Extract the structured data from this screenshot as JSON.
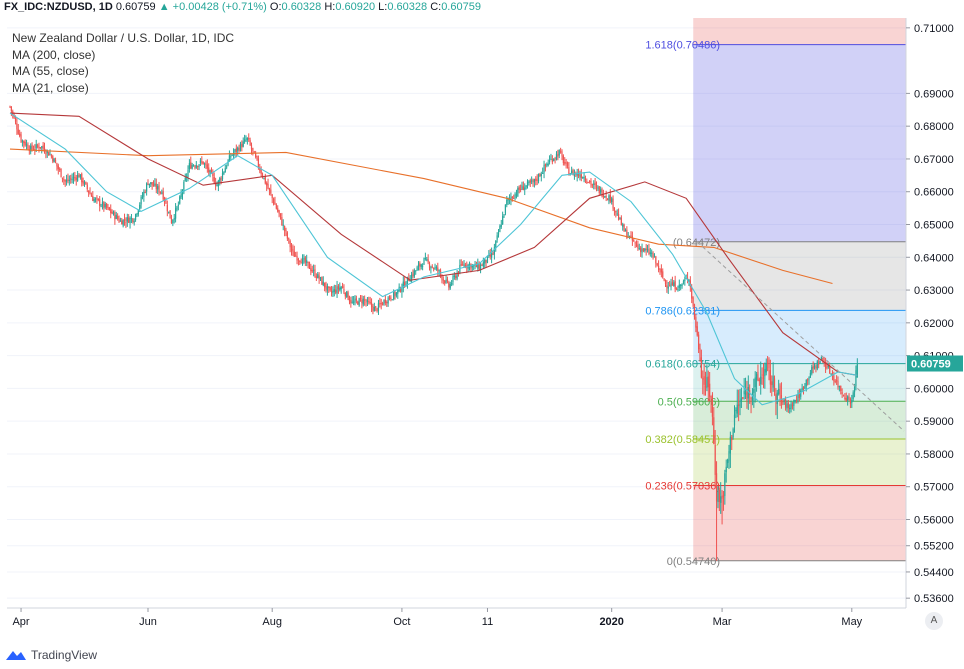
{
  "header": {
    "symbol": "FX_IDC:NZDUSD, 1D",
    "last": "0.60759",
    "arrow": "▲",
    "change": "+0.00428 (+0.71%)",
    "o_label": "O:",
    "o": "0.60328",
    "h_label": "H:",
    "h": "0.60920",
    "l_label": "L:",
    "l": "0.60328",
    "c_label": "C:",
    "c": "0.60759"
  },
  "legend": {
    "title": "New Zealand Dollar / U.S. Dollar, 1D, IDC",
    "ma200": "MA (200, close)",
    "ma55": "MA (55, close)",
    "ma21": "MA (21, close)"
  },
  "footer": {
    "brand": "TradingView",
    "auto_button": "A"
  },
  "colors": {
    "up": "#26a69a",
    "down": "#ef5350",
    "ma200": "#e8702a",
    "ma55": "#b5383a",
    "ma21": "#4ec5d6",
    "fib_1618": "#4e4ee0",
    "fib_1": "#808080",
    "fib_0786": "#2196f3",
    "fib_0618": "#26a69a",
    "fib_05": "#4caf50",
    "fib_0382": "#9bc22d",
    "fib_0236": "#e53935",
    "fib_0": "#808080"
  },
  "chart_data": {
    "type": "candlestick",
    "symbol": "NZDUSD",
    "timeframe": "1D",
    "x_ticks": [
      "Apr",
      "Jun",
      "Aug",
      "Oct",
      "11",
      "2020",
      "Mar",
      "May"
    ],
    "y_ticks": [
      "0.71000",
      "0.69000",
      "0.68000",
      "0.67000",
      "0.66000",
      "0.65000",
      "0.64000",
      "0.63000",
      "0.62000",
      "0.61000",
      "0.60000",
      "0.59000",
      "0.58000",
      "0.57000",
      "0.56000",
      "0.55200",
      "0.54400",
      "0.53600"
    ],
    "current_price_label": "0.60759",
    "ylim": [
      0.533,
      0.713
    ],
    "price_path": [
      [
        0,
        0.686
      ],
      [
        8,
        0.676
      ],
      [
        15,
        0.673
      ],
      [
        22,
        0.674
      ],
      [
        30,
        0.671
      ],
      [
        40,
        0.663
      ],
      [
        50,
        0.665
      ],
      [
        60,
        0.658
      ],
      [
        70,
        0.655
      ],
      [
        80,
        0.651
      ],
      [
        90,
        0.652
      ],
      [
        100,
        0.663
      ],
      [
        110,
        0.66
      ],
      [
        117,
        0.651
      ],
      [
        122,
        0.656
      ],
      [
        130,
        0.668
      ],
      [
        140,
        0.669
      ],
      [
        150,
        0.662
      ],
      [
        160,
        0.671
      ],
      [
        172,
        0.676
      ],
      [
        180,
        0.668
      ],
      [
        188,
        0.66
      ],
      [
        195,
        0.653
      ],
      [
        205,
        0.641
      ],
      [
        215,
        0.638
      ],
      [
        225,
        0.633
      ],
      [
        232,
        0.629
      ],
      [
        240,
        0.631
      ],
      [
        248,
        0.626
      ],
      [
        256,
        0.627
      ],
      [
        265,
        0.624
      ],
      [
        272,
        0.627
      ],
      [
        280,
        0.629
      ],
      [
        290,
        0.634
      ],
      [
        300,
        0.639
      ],
      [
        310,
        0.636
      ],
      [
        318,
        0.631
      ],
      [
        328,
        0.638
      ],
      [
        340,
        0.637
      ],
      [
        350,
        0.641
      ],
      [
        360,
        0.657
      ],
      [
        370,
        0.661
      ],
      [
        380,
        0.663
      ],
      [
        390,
        0.669
      ],
      [
        398,
        0.672
      ],
      [
        405,
        0.666
      ],
      [
        415,
        0.665
      ],
      [
        425,
        0.661
      ],
      [
        435,
        0.658
      ],
      [
        445,
        0.648
      ],
      [
        455,
        0.643
      ],
      [
        465,
        0.641
      ],
      [
        475,
        0.632
      ],
      [
        485,
        0.631
      ],
      [
        492,
        0.634
      ],
      [
        497,
        0.619
      ],
      [
        502,
        0.603
      ],
      [
        508,
        0.598
      ],
      [
        512,
        0.568
      ],
      [
        516,
        0.566
      ],
      [
        520,
        0.578
      ],
      [
        525,
        0.592
      ],
      [
        532,
        0.598
      ],
      [
        540,
        0.601
      ],
      [
        548,
        0.606
      ],
      [
        556,
        0.598
      ],
      [
        564,
        0.594
      ],
      [
        572,
        0.598
      ],
      [
        580,
        0.605
      ],
      [
        588,
        0.609
      ],
      [
        596,
        0.604
      ],
      [
        604,
        0.598
      ],
      [
        610,
        0.596
      ],
      [
        614,
        0.6076
      ]
    ],
    "moving_averages": [
      {
        "name": "MA (200, close)",
        "points": [
          [
            0,
            0.673
          ],
          [
            100,
            0.671
          ],
          [
            200,
            0.672
          ],
          [
            300,
            0.664
          ],
          [
            360,
            0.658
          ],
          [
            420,
            0.649
          ],
          [
            470,
            0.644
          ],
          [
            510,
            0.643
          ],
          [
            560,
            0.636
          ],
          [
            596,
            0.632
          ]
        ]
      },
      {
        "name": "MA (55, close)",
        "points": [
          [
            0,
            0.684
          ],
          [
            50,
            0.683
          ],
          [
            100,
            0.67
          ],
          [
            140,
            0.662
          ],
          [
            190,
            0.665
          ],
          [
            240,
            0.647
          ],
          [
            290,
            0.633
          ],
          [
            340,
            0.636
          ],
          [
            380,
            0.643
          ],
          [
            420,
            0.658
          ],
          [
            460,
            0.663
          ],
          [
            490,
            0.658
          ],
          [
            520,
            0.64
          ],
          [
            560,
            0.617
          ],
          [
            600,
            0.605
          ],
          [
            614,
            0.604
          ]
        ]
      },
      {
        "name": "MA (21, close)",
        "points": [
          [
            0,
            0.684
          ],
          [
            40,
            0.673
          ],
          [
            70,
            0.66
          ],
          [
            95,
            0.654
          ],
          [
            130,
            0.661
          ],
          [
            165,
            0.671
          ],
          [
            190,
            0.665
          ],
          [
            230,
            0.64
          ],
          [
            270,
            0.628
          ],
          [
            300,
            0.634
          ],
          [
            340,
            0.638
          ],
          [
            370,
            0.65
          ],
          [
            400,
            0.665
          ],
          [
            420,
            0.666
          ],
          [
            450,
            0.657
          ],
          [
            480,
            0.641
          ],
          [
            505,
            0.623
          ],
          [
            525,
            0.603
          ],
          [
            545,
            0.595
          ],
          [
            570,
            0.598
          ],
          [
            600,
            0.605
          ],
          [
            614,
            0.604
          ]
        ]
      }
    ],
    "fibonacci_retracement": {
      "start_bar": 498,
      "levels": [
        {
          "label": "1.618(0.70486)",
          "value": 0.70486
        },
        {
          "label": "(0.64472)",
          "value": 0.64472
        },
        {
          "label": "0.786(0.62381)",
          "value": 0.62381
        },
        {
          "label": "0.618(0.60754)",
          "value": 0.60754
        },
        {
          "label": "0.5(0.59606)",
          "value": 0.59606
        },
        {
          "label": "0.382(0.58457)",
          "value": 0.58457
        },
        {
          "label": "0.236(0.57036)",
          "value": 0.57036
        },
        {
          "label": "0(0.54740)",
          "value": 0.5474
        }
      ]
    }
  }
}
